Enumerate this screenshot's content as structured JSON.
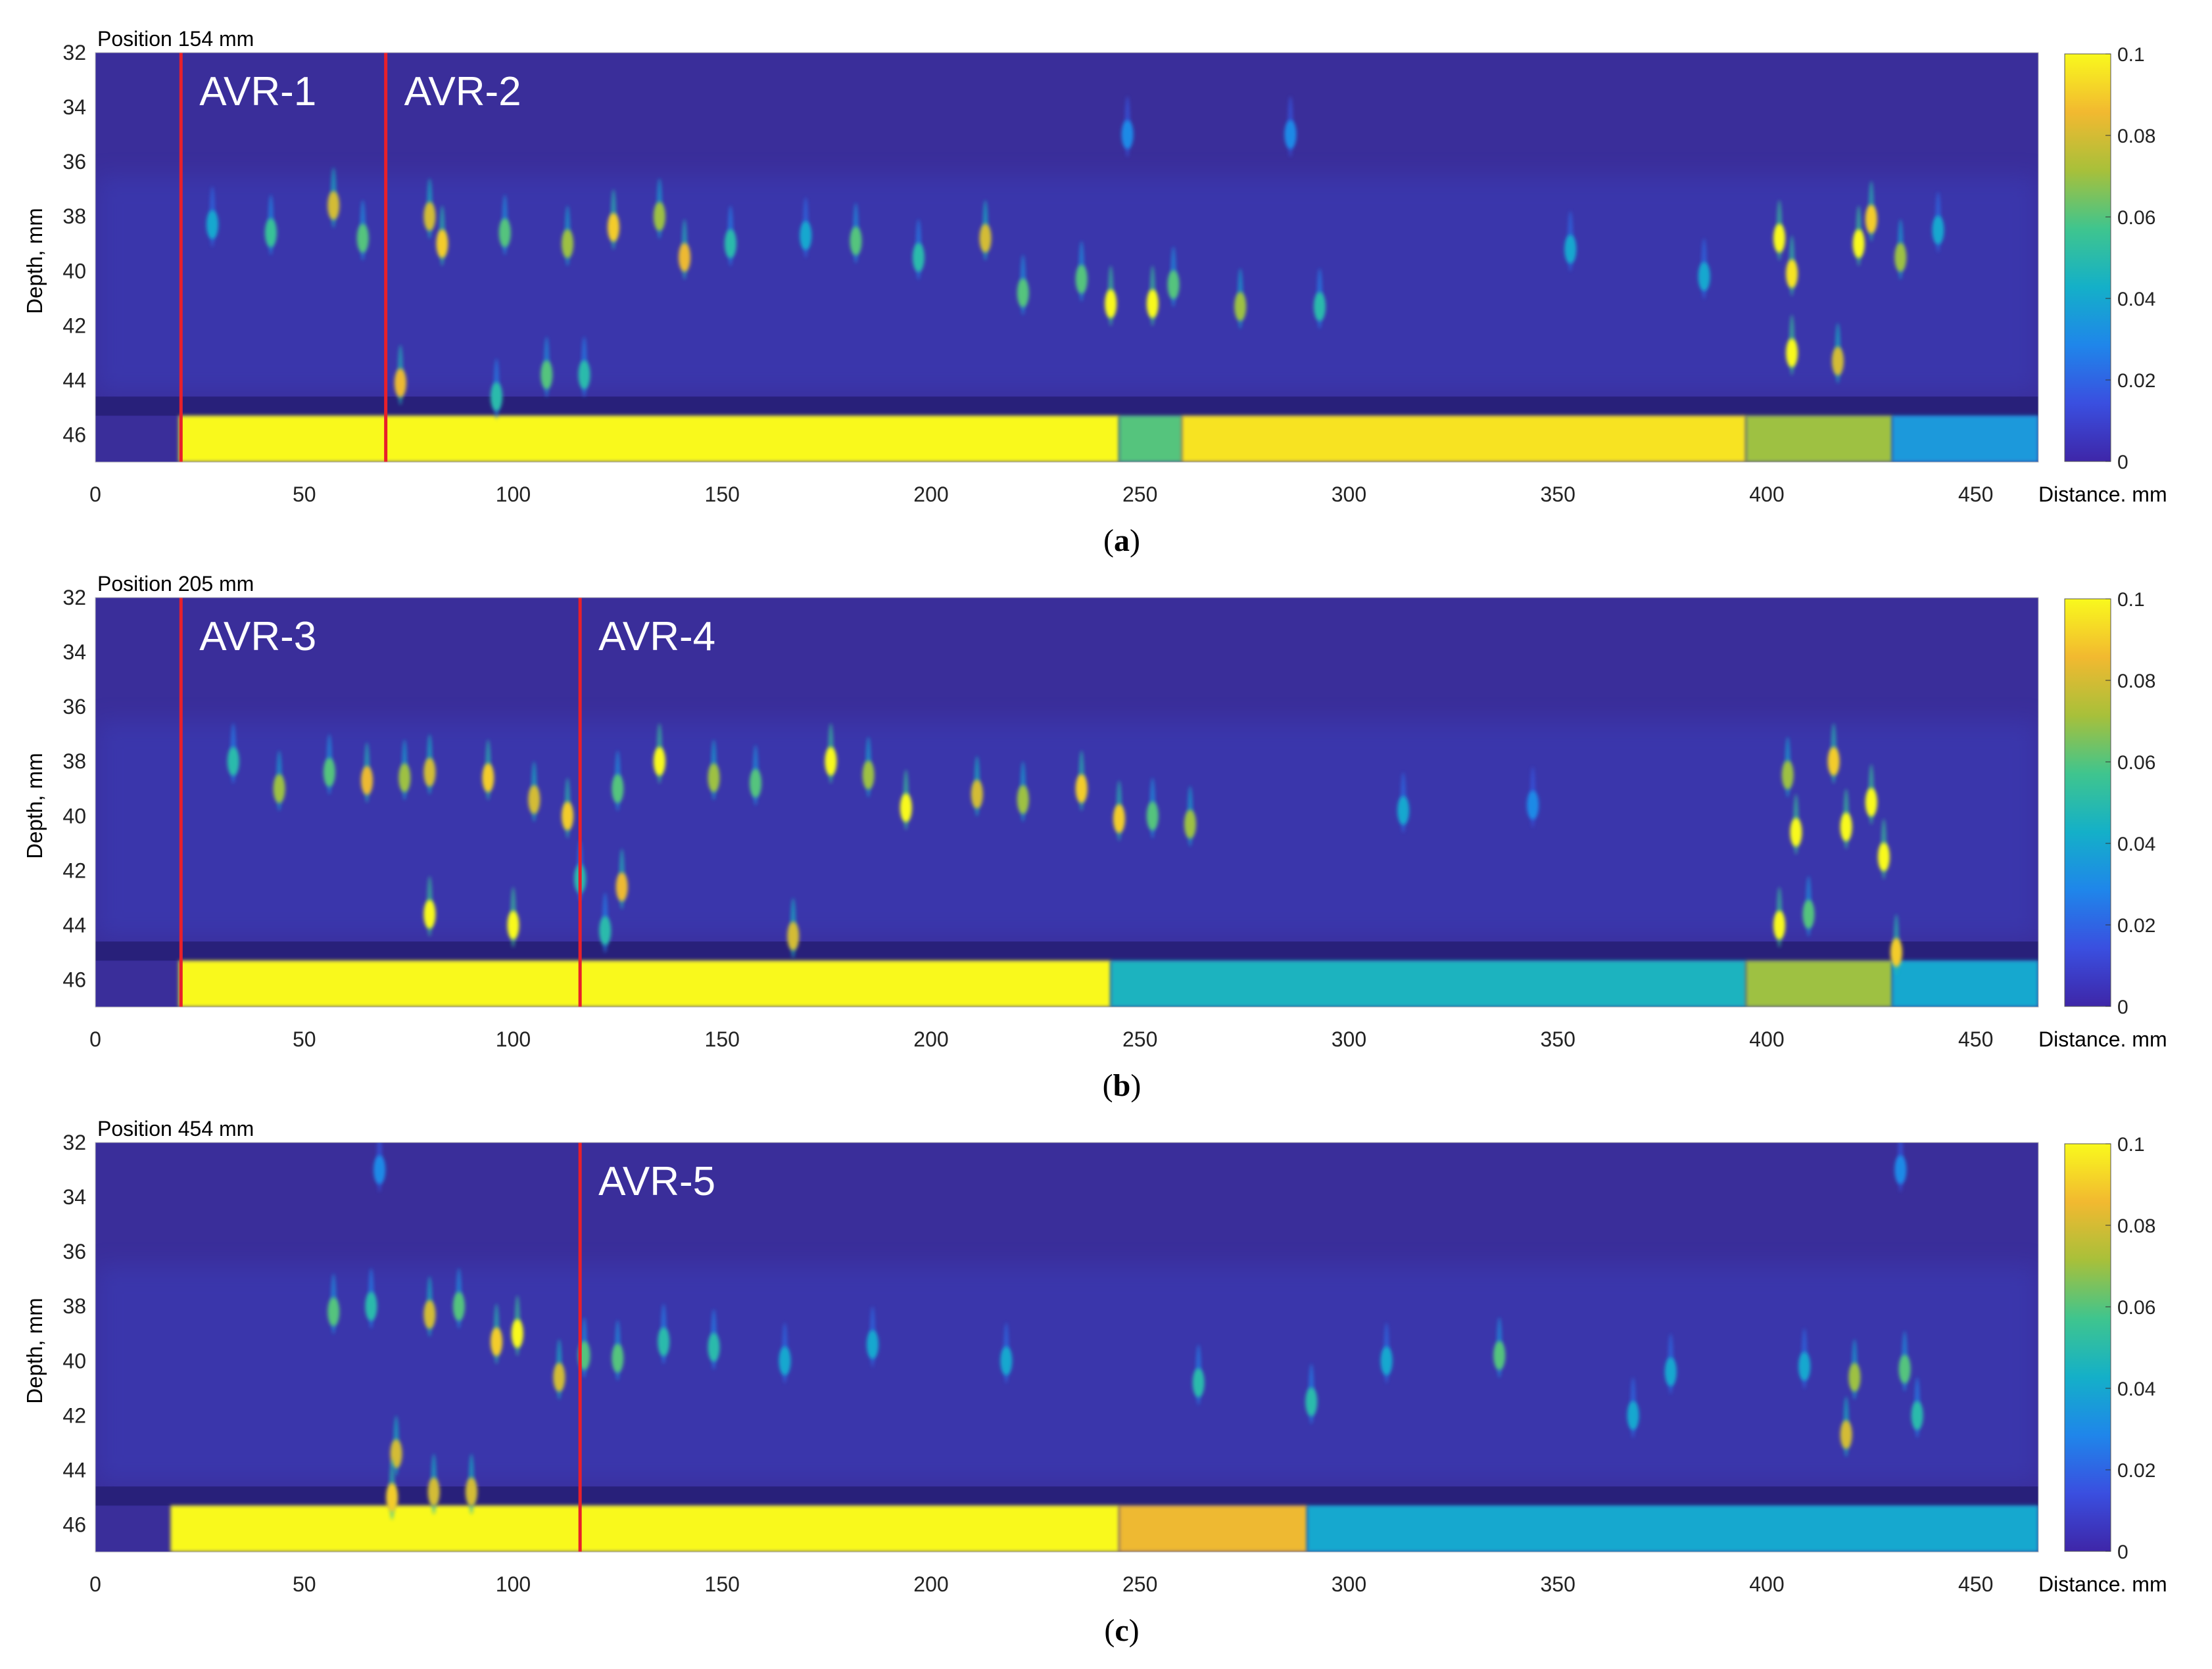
{
  "colors": {
    "background": "#3a2e9a",
    "marker_line": "#e8202a",
    "colormap": [
      "#3e26a8",
      "#3a4fe0",
      "#1f86ea",
      "#14b0c8",
      "#3fc58e",
      "#a8c03a",
      "#f2b930",
      "#f9f91d"
    ]
  },
  "chart_data": [
    {
      "type": "heatmap",
      "panel_label": "a",
      "title": "Position 154 mm",
      "xlabel": "Distance. mm",
      "ylabel": "Depth, mm",
      "xlim": [
        0,
        465
      ],
      "ylim": [
        32,
        47
      ],
      "y_reversed": true,
      "xticks": [
        0,
        50,
        100,
        150,
        200,
        250,
        300,
        350,
        400,
        450
      ],
      "yticks": [
        32,
        34,
        36,
        38,
        40,
        42,
        44,
        46
      ],
      "colorbar": {
        "min": 0,
        "max": 0.1,
        "ticks": [
          "0.1",
          "0.08",
          "0.06",
          "0.04",
          "0.02",
          "0"
        ]
      },
      "markers": [
        {
          "label": "AVR-1",
          "x": 20.5
        },
        {
          "label": "AVR-2",
          "x": 69.5
        }
      ],
      "backwall": {
        "depth_range": [
          45.3,
          47
        ],
        "segments": [
          {
            "x": [
              20,
              245
            ],
            "value": 0.1
          },
          {
            "x": [
              245,
              260
            ],
            "value": 0.06
          },
          {
            "x": [
              260,
              395
            ],
            "value": 0.095
          },
          {
            "x": [
              395,
              430
            ],
            "value": 0.07
          },
          {
            "x": [
              430,
              465
            ],
            "value": 0.035
          }
        ]
      },
      "spots": [
        {
          "x": 28,
          "y": 38.3,
          "v": 0.04
        },
        {
          "x": 42,
          "y": 38.6,
          "v": 0.055
        },
        {
          "x": 57,
          "y": 37.6,
          "v": 0.08
        },
        {
          "x": 64,
          "y": 38.8,
          "v": 0.06
        },
        {
          "x": 80,
          "y": 38.0,
          "v": 0.08
        },
        {
          "x": 83,
          "y": 39.0,
          "v": 0.09
        },
        {
          "x": 98,
          "y": 38.6,
          "v": 0.06
        },
        {
          "x": 113,
          "y": 39.0,
          "v": 0.07
        },
        {
          "x": 124,
          "y": 38.4,
          "v": 0.09
        },
        {
          "x": 135,
          "y": 38.0,
          "v": 0.07
        },
        {
          "x": 141,
          "y": 39.5,
          "v": 0.085
        },
        {
          "x": 152,
          "y": 39.0,
          "v": 0.05
        },
        {
          "x": 170,
          "y": 38.7,
          "v": 0.04
        },
        {
          "x": 182,
          "y": 38.9,
          "v": 0.06
        },
        {
          "x": 197,
          "y": 39.5,
          "v": 0.05
        },
        {
          "x": 213,
          "y": 38.8,
          "v": 0.08
        },
        {
          "x": 222,
          "y": 40.8,
          "v": 0.06
        },
        {
          "x": 236,
          "y": 40.3,
          "v": 0.06
        },
        {
          "x": 243,
          "y": 41.2,
          "v": 0.1
        },
        {
          "x": 253,
          "y": 41.2,
          "v": 0.1
        },
        {
          "x": 258,
          "y": 40.5,
          "v": 0.06
        },
        {
          "x": 274,
          "y": 41.3,
          "v": 0.07
        },
        {
          "x": 293,
          "y": 41.3,
          "v": 0.05
        },
        {
          "x": 73,
          "y": 44.1,
          "v": 0.085
        },
        {
          "x": 108,
          "y": 43.8,
          "v": 0.06
        },
        {
          "x": 117,
          "y": 43.8,
          "v": 0.05
        },
        {
          "x": 96,
          "y": 44.6,
          "v": 0.05
        },
        {
          "x": 353,
          "y": 39.2,
          "v": 0.04
        },
        {
          "x": 385,
          "y": 40.2,
          "v": 0.04
        },
        {
          "x": 403,
          "y": 38.8,
          "v": 0.1
        },
        {
          "x": 406,
          "y": 40.1,
          "v": 0.095
        },
        {
          "x": 422,
          "y": 39.0,
          "v": 0.1
        },
        {
          "x": 425,
          "y": 38.1,
          "v": 0.09
        },
        {
          "x": 432,
          "y": 39.5,
          "v": 0.07
        },
        {
          "x": 406,
          "y": 43.0,
          "v": 0.1
        },
        {
          "x": 417,
          "y": 43.3,
          "v": 0.08
        },
        {
          "x": 441,
          "y": 38.5,
          "v": 0.04
        },
        {
          "x": 247,
          "y": 35.0,
          "v": 0.03
        },
        {
          "x": 286,
          "y": 35.0,
          "v": 0.03
        }
      ]
    },
    {
      "type": "heatmap",
      "panel_label": "b",
      "title": "Position 205 mm",
      "xlabel": "Distance. mm",
      "ylabel": "Depth, mm",
      "xlim": [
        0,
        465
      ],
      "ylim": [
        32,
        47
      ],
      "y_reversed": true,
      "xticks": [
        0,
        50,
        100,
        150,
        200,
        250,
        300,
        350,
        400,
        450
      ],
      "yticks": [
        32,
        34,
        36,
        38,
        40,
        42,
        44,
        46
      ],
      "colorbar": {
        "min": 0,
        "max": 0.1,
        "ticks": [
          "0.1",
          "0.08",
          "0.06",
          "0.04",
          "0.02",
          "0"
        ]
      },
      "markers": [
        {
          "label": "AVR-3",
          "x": 20.5
        },
        {
          "label": "AVR-4",
          "x": 116
        }
      ],
      "backwall": {
        "depth_range": [
          45.3,
          47
        ],
        "segments": [
          {
            "x": [
              20,
              243
            ],
            "value": 0.1
          },
          {
            "x": [
              243,
              395
            ],
            "value": 0.045
          },
          {
            "x": [
              395,
              430
            ],
            "value": 0.07
          },
          {
            "x": [
              430,
              465
            ],
            "value": 0.04
          }
        ]
      },
      "spots": [
        {
          "x": 33,
          "y": 38.0,
          "v": 0.05
        },
        {
          "x": 44,
          "y": 39.0,
          "v": 0.07
        },
        {
          "x": 56,
          "y": 38.4,
          "v": 0.06
        },
        {
          "x": 65,
          "y": 38.7,
          "v": 0.085
        },
        {
          "x": 74,
          "y": 38.6,
          "v": 0.07
        },
        {
          "x": 80,
          "y": 38.4,
          "v": 0.08
        },
        {
          "x": 94,
          "y": 38.6,
          "v": 0.09
        },
        {
          "x": 105,
          "y": 39.4,
          "v": 0.08
        },
        {
          "x": 113,
          "y": 40.0,
          "v": 0.09
        },
        {
          "x": 125,
          "y": 39.0,
          "v": 0.06
        },
        {
          "x": 135,
          "y": 38.0,
          "v": 0.1
        },
        {
          "x": 148,
          "y": 38.6,
          "v": 0.07
        },
        {
          "x": 158,
          "y": 38.8,
          "v": 0.06
        },
        {
          "x": 176,
          "y": 38.0,
          "v": 0.1
        },
        {
          "x": 185,
          "y": 38.5,
          "v": 0.07
        },
        {
          "x": 194,
          "y": 39.7,
          "v": 0.1
        },
        {
          "x": 211,
          "y": 39.2,
          "v": 0.08
        },
        {
          "x": 222,
          "y": 39.4,
          "v": 0.07
        },
        {
          "x": 236,
          "y": 39.0,
          "v": 0.09
        },
        {
          "x": 245,
          "y": 40.1,
          "v": 0.09
        },
        {
          "x": 253,
          "y": 40.0,
          "v": 0.06
        },
        {
          "x": 262,
          "y": 40.3,
          "v": 0.07
        },
        {
          "x": 80,
          "y": 43.6,
          "v": 0.1
        },
        {
          "x": 100,
          "y": 44.0,
          "v": 0.1
        },
        {
          "x": 116,
          "y": 42.3,
          "v": 0.05
        },
        {
          "x": 126,
          "y": 42.6,
          "v": 0.085
        },
        {
          "x": 122,
          "y": 44.2,
          "v": 0.05
        },
        {
          "x": 167,
          "y": 44.4,
          "v": 0.08
        },
        {
          "x": 313,
          "y": 39.8,
          "v": 0.04
        },
        {
          "x": 344,
          "y": 39.6,
          "v": 0.03
        },
        {
          "x": 405,
          "y": 38.5,
          "v": 0.07
        },
        {
          "x": 407,
          "y": 40.6,
          "v": 0.1
        },
        {
          "x": 416,
          "y": 38.0,
          "v": 0.09
        },
        {
          "x": 419,
          "y": 40.4,
          "v": 0.1
        },
        {
          "x": 425,
          "y": 39.5,
          "v": 0.1
        },
        {
          "x": 428,
          "y": 41.5,
          "v": 0.1
        },
        {
          "x": 403,
          "y": 44.0,
          "v": 0.1
        },
        {
          "x": 410,
          "y": 43.6,
          "v": 0.06
        },
        {
          "x": 431,
          "y": 45.0,
          "v": 0.09
        }
      ]
    },
    {
      "type": "heatmap",
      "panel_label": "c",
      "title": "Position 454 mm",
      "xlabel": "Distance. mm",
      "ylabel": "Depth, mm",
      "xlim": [
        0,
        465
      ],
      "ylim": [
        32,
        47
      ],
      "y_reversed": true,
      "xticks": [
        0,
        50,
        100,
        150,
        200,
        250,
        300,
        350,
        400,
        450
      ],
      "yticks": [
        32,
        34,
        36,
        38,
        40,
        42,
        44,
        46
      ],
      "colorbar": {
        "min": 0,
        "max": 0.1,
        "ticks": [
          "0.1",
          "0.08",
          "0.06",
          "0.04",
          "0.02",
          "0"
        ]
      },
      "markers": [
        {
          "label": "AVR-5",
          "x": 116
        }
      ],
      "backwall": {
        "depth_range": [
          45.3,
          47
        ],
        "segments": [
          {
            "x": [
              18,
              245
            ],
            "value": 0.1
          },
          {
            "x": [
              245,
              290
            ],
            "value": 0.085
          },
          {
            "x": [
              290,
              465
            ],
            "value": 0.04
          }
        ]
      },
      "spots": [
        {
          "x": 57,
          "y": 38.2,
          "v": 0.06
        },
        {
          "x": 66,
          "y": 38.0,
          "v": 0.05
        },
        {
          "x": 80,
          "y": 38.3,
          "v": 0.08
        },
        {
          "x": 87,
          "y": 38.0,
          "v": 0.06
        },
        {
          "x": 96,
          "y": 39.3,
          "v": 0.09
        },
        {
          "x": 101,
          "y": 39.0,
          "v": 0.1
        },
        {
          "x": 111,
          "y": 40.6,
          "v": 0.08
        },
        {
          "x": 117,
          "y": 39.8,
          "v": 0.06
        },
        {
          "x": 125,
          "y": 39.9,
          "v": 0.06
        },
        {
          "x": 136,
          "y": 39.3,
          "v": 0.05
        },
        {
          "x": 148,
          "y": 39.5,
          "v": 0.05
        },
        {
          "x": 165,
          "y": 40.0,
          "v": 0.04
        },
        {
          "x": 186,
          "y": 39.4,
          "v": 0.04
        },
        {
          "x": 218,
          "y": 40.0,
          "v": 0.04
        },
        {
          "x": 264,
          "y": 40.8,
          "v": 0.05
        },
        {
          "x": 291,
          "y": 41.5,
          "v": 0.05
        },
        {
          "x": 309,
          "y": 40.0,
          "v": 0.04
        },
        {
          "x": 336,
          "y": 39.8,
          "v": 0.06
        },
        {
          "x": 368,
          "y": 42.0,
          "v": 0.04
        },
        {
          "x": 377,
          "y": 40.4,
          "v": 0.04
        },
        {
          "x": 409,
          "y": 40.2,
          "v": 0.04
        },
        {
          "x": 421,
          "y": 40.6,
          "v": 0.07
        },
        {
          "x": 419,
          "y": 42.7,
          "v": 0.08
        },
        {
          "x": 433,
          "y": 40.3,
          "v": 0.06
        },
        {
          "x": 436,
          "y": 42.0,
          "v": 0.05
        },
        {
          "x": 72,
          "y": 43.4,
          "v": 0.08
        },
        {
          "x": 71,
          "y": 45.0,
          "v": 0.09
        },
        {
          "x": 81,
          "y": 44.8,
          "v": 0.08
        },
        {
          "x": 90,
          "y": 44.8,
          "v": 0.08
        },
        {
          "x": 68,
          "y": 33.0,
          "v": 0.03
        },
        {
          "x": 432,
          "y": 33.0,
          "v": 0.03
        }
      ]
    }
  ]
}
